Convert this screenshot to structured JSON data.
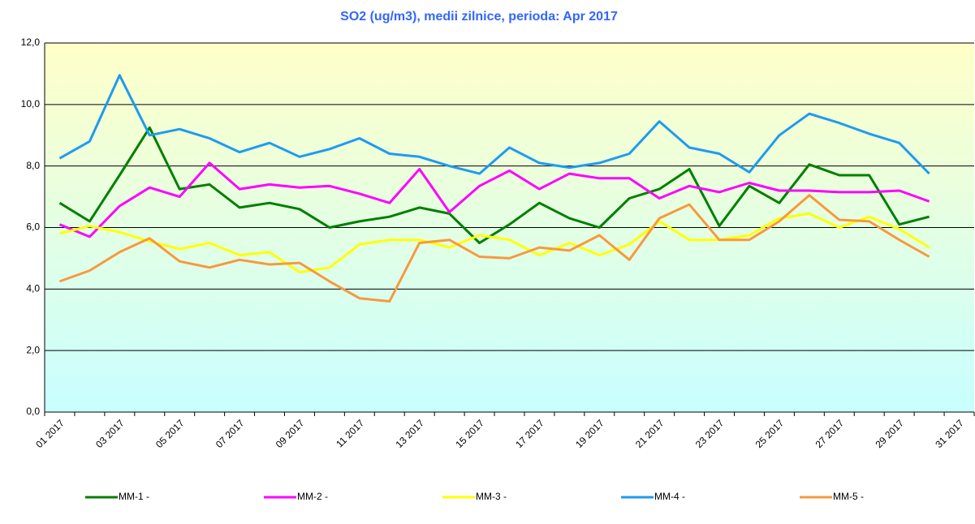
{
  "chart_data": {
    "type": "line",
    "title": "SO2 (ug/m3), medii zilnice, perioda:  Apr 2017",
    "categories": [
      "01 2017",
      null,
      "03 2017",
      null,
      "05 2017",
      null,
      "07 2017",
      null,
      "09 2017",
      null,
      "11 2017",
      null,
      "13 2017",
      null,
      "15 2017",
      null,
      "17 2017",
      null,
      "19 2017",
      null,
      "21 2017",
      null,
      "23 2017",
      null,
      "25 2017",
      null,
      "27 2017",
      null,
      "29 2017",
      null,
      "31 2017"
    ],
    "series": [
      {
        "name": "MM-1 -",
        "color": "#007f00",
        "values": [
          6.8,
          6.2,
          7.7,
          9.25,
          7.25,
          7.4,
          6.65,
          6.8,
          6.6,
          6.0,
          6.2,
          6.35,
          6.65,
          6.45,
          5.5,
          6.1,
          6.8,
          6.3,
          6.0,
          6.95,
          7.25,
          7.9,
          6.05,
          7.35,
          6.8,
          8.05,
          7.7,
          7.7,
          6.1,
          6.35,
          null
        ]
      },
      {
        "name": "MM-2 -",
        "color": "#ff00ff",
        "values": [
          6.1,
          5.7,
          6.7,
          7.3,
          7.0,
          8.1,
          7.25,
          7.4,
          7.3,
          7.35,
          7.1,
          6.8,
          7.9,
          6.5,
          7.35,
          7.85,
          7.25,
          7.75,
          7.6,
          7.6,
          6.95,
          7.35,
          7.15,
          7.45,
          7.2,
          7.2,
          7.15,
          7.15,
          7.2,
          6.85,
          null
        ]
      },
      {
        "name": "MM-3 -",
        "color": "#ffff00",
        "values": [
          5.8,
          6.05,
          5.85,
          5.55,
          5.3,
          5.5,
          5.1,
          5.2,
          4.55,
          4.7,
          5.45,
          5.6,
          5.6,
          5.35,
          5.75,
          5.6,
          5.1,
          5.5,
          5.1,
          5.45,
          6.2,
          5.6,
          5.6,
          5.75,
          6.3,
          6.45,
          6.0,
          6.35,
          5.95,
          5.35,
          null
        ]
      },
      {
        "name": "MM-4 -",
        "color": "#1e9bf0",
        "values": [
          8.25,
          8.8,
          10.95,
          9.0,
          9.2,
          8.9,
          8.45,
          8.75,
          8.3,
          8.55,
          8.9,
          8.4,
          8.3,
          8.0,
          7.75,
          8.6,
          8.1,
          7.95,
          8.1,
          8.4,
          9.45,
          8.6,
          8.4,
          7.8,
          9.0,
          9.7,
          9.4,
          9.05,
          8.75,
          7.75,
          null
        ]
      },
      {
        "name": "MM-5 -",
        "color": "#f7993d",
        "values": [
          4.25,
          4.6,
          5.2,
          5.65,
          4.9,
          4.7,
          4.95,
          4.8,
          4.85,
          4.25,
          3.7,
          3.6,
          5.5,
          5.6,
          5.05,
          5.0,
          5.35,
          5.25,
          5.75,
          4.95,
          6.3,
          6.75,
          5.6,
          5.6,
          6.2,
          7.05,
          6.25,
          6.2,
          5.6,
          5.05,
          null
        ]
      }
    ],
    "ylim": [
      0,
      12
    ],
    "yticks": [
      {
        "value": 0,
        "label": "0,0"
      },
      {
        "value": 2,
        "label": "2,0"
      },
      {
        "value": 4,
        "label": "4,0"
      },
      {
        "value": 6,
        "label": "6,0"
      },
      {
        "value": 8,
        "label": "8,0"
      },
      {
        "value": 10,
        "label": "10,0"
      },
      {
        "value": 12,
        "label": "12,0"
      }
    ],
    "grid": true
  }
}
